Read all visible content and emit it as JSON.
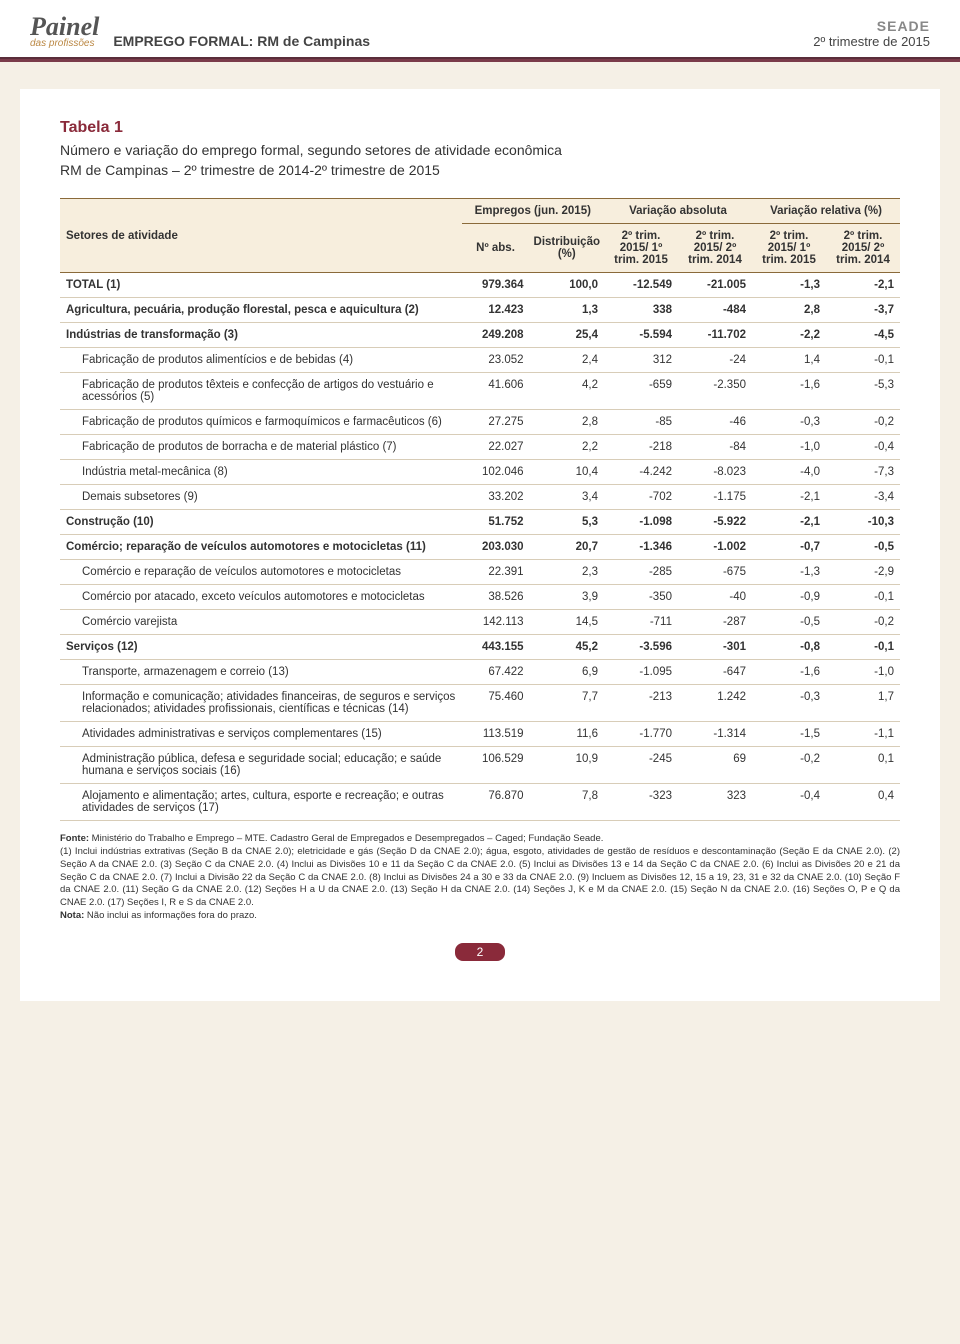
{
  "header": {
    "brand_main": "Painel",
    "brand_sub": "das profissões",
    "title": "EMPREGO FORMAL: RM de Campinas",
    "org": "SEADE",
    "period": "2º trimestre de 2015"
  },
  "table": {
    "label": "Tabela 1",
    "subtitle": "Número e variação do emprego formal, segundo setores de atividade econômica\nRM de Campinas – 2º trimestre de 2014-2º trimestre de 2015",
    "columns": {
      "sector": "Setores de atividade",
      "group_emp": "Empregos (jun. 2015)",
      "group_abs": "Variação absoluta",
      "group_rel": "Variação relativa (%)",
      "nabs": "Nº abs.",
      "dist": "Distribuição (%)",
      "abs1": "2º trim. 2015/ 1º trim. 2015",
      "abs2": "2º trim. 2015/ 2º trim. 2014",
      "rel1": "2º trim. 2015/ 1º trim. 2015",
      "rel2": "2º trim. 2015/ 2º trim. 2014"
    },
    "rows": [
      {
        "bold": true,
        "indent": 0,
        "label": "TOTAL (1)",
        "n": "979.364",
        "d": "100,0",
        "a1": "-12.549",
        "a2": "-21.005",
        "r1": "-1,3",
        "r2": "-2,1"
      },
      {
        "bold": true,
        "indent": 0,
        "label": "Agricultura, pecuária, produção florestal, pesca e aquicultura (2)",
        "n": "12.423",
        "d": "1,3",
        "a1": "338",
        "a2": "-484",
        "r1": "2,8",
        "r2": "-3,7"
      },
      {
        "bold": true,
        "indent": 0,
        "label": "Indústrias de transformação (3)",
        "n": "249.208",
        "d": "25,4",
        "a1": "-5.594",
        "a2": "-11.702",
        "r1": "-2,2",
        "r2": "-4,5"
      },
      {
        "bold": false,
        "indent": 1,
        "label": "Fabricação de produtos alimentícios e de bebidas (4)",
        "n": "23.052",
        "d": "2,4",
        "a1": "312",
        "a2": "-24",
        "r1": "1,4",
        "r2": "-0,1"
      },
      {
        "bold": false,
        "indent": 1,
        "label": "Fabricação de produtos têxteis e confecção de artigos do vestuário e acessórios (5)",
        "n": "41.606",
        "d": "4,2",
        "a1": "-659",
        "a2": "-2.350",
        "r1": "-1,6",
        "r2": "-5,3"
      },
      {
        "bold": false,
        "indent": 1,
        "label": "Fabricação de produtos químicos e farmoquímicos e farmacêuticos (6)",
        "n": "27.275",
        "d": "2,8",
        "a1": "-85",
        "a2": "-46",
        "r1": "-0,3",
        "r2": "-0,2"
      },
      {
        "bold": false,
        "indent": 1,
        "label": "Fabricação de produtos de borracha e de material plástico (7)",
        "n": "22.027",
        "d": "2,2",
        "a1": "-218",
        "a2": "-84",
        "r1": "-1,0",
        "r2": "-0,4"
      },
      {
        "bold": false,
        "indent": 1,
        "label": "Indústria metal-mecânica (8)",
        "n": "102.046",
        "d": "10,4",
        "a1": "-4.242",
        "a2": "-8.023",
        "r1": "-4,0",
        "r2": "-7,3"
      },
      {
        "bold": false,
        "indent": 1,
        "label": "Demais subsetores (9)",
        "n": "33.202",
        "d": "3,4",
        "a1": "-702",
        "a2": "-1.175",
        "r1": "-2,1",
        "r2": "-3,4"
      },
      {
        "bold": true,
        "indent": 0,
        "label": "Construção (10)",
        "n": "51.752",
        "d": "5,3",
        "a1": "-1.098",
        "a2": "-5.922",
        "r1": "-2,1",
        "r2": "-10,3"
      },
      {
        "bold": true,
        "indent": 0,
        "label": "Comércio; reparação de veículos automotores e motocicletas (11)",
        "n": "203.030",
        "d": "20,7",
        "a1": "-1.346",
        "a2": "-1.002",
        "r1": "-0,7",
        "r2": "-0,5"
      },
      {
        "bold": false,
        "indent": 1,
        "label": "Comércio e reparação de veículos automotores e motocicletas",
        "n": "22.391",
        "d": "2,3",
        "a1": "-285",
        "a2": "-675",
        "r1": "-1,3",
        "r2": "-2,9"
      },
      {
        "bold": false,
        "indent": 1,
        "label": "Comércio por atacado, exceto veículos automotores e motocicletas",
        "n": "38.526",
        "d": "3,9",
        "a1": "-350",
        "a2": "-40",
        "r1": "-0,9",
        "r2": "-0,1"
      },
      {
        "bold": false,
        "indent": 1,
        "label": "Comércio varejista",
        "n": "142.113",
        "d": "14,5",
        "a1": "-711",
        "a2": "-287",
        "r1": "-0,5",
        "r2": "-0,2"
      },
      {
        "bold": true,
        "indent": 0,
        "label": "Serviços (12)",
        "n": "443.155",
        "d": "45,2",
        "a1": "-3.596",
        "a2": "-301",
        "r1": "-0,8",
        "r2": "-0,1"
      },
      {
        "bold": false,
        "indent": 1,
        "label": "Transporte, armazenagem e correio (13)",
        "n": "67.422",
        "d": "6,9",
        "a1": "-1.095",
        "a2": "-647",
        "r1": "-1,6",
        "r2": "-1,0"
      },
      {
        "bold": false,
        "indent": 1,
        "label": "Informação e comunicação; atividades financeiras, de seguros e serviços relacionados; atividades profissionais, científicas e técnicas (14)",
        "n": "75.460",
        "d": "7,7",
        "a1": "-213",
        "a2": "1.242",
        "r1": "-0,3",
        "r2": "1,7"
      },
      {
        "bold": false,
        "indent": 1,
        "label": "Atividades administrativas e serviços complementares (15)",
        "n": "113.519",
        "d": "11,6",
        "a1": "-1.770",
        "a2": "-1.314",
        "r1": "-1,5",
        "r2": "-1,1"
      },
      {
        "bold": false,
        "indent": 1,
        "label": "Administração pública, defesa e seguridade social; educação; e saúde humana e serviços sociais (16)",
        "n": "106.529",
        "d": "10,9",
        "a1": "-245",
        "a2": "69",
        "r1": "-0,2",
        "r2": "0,1"
      },
      {
        "bold": false,
        "indent": 1,
        "label": "Alojamento e alimentação; artes, cultura, esporte e recreação; e outras atividades de serviços (17)",
        "n": "76.870",
        "d": "7,8",
        "a1": "-323",
        "a2": "323",
        "r1": "-0,4",
        "r2": "0,4"
      }
    ]
  },
  "footnote": {
    "source_label": "Fonte:",
    "source_text": " Ministério do Trabalho e Emprego – MTE. Cadastro Geral de Empregados e Desempregados – Caged; Fundação Seade.",
    "notes": "(1) Inclui indústrias extrativas (Seção B da CNAE 2.0); eletricidade e gás (Seção D da CNAE 2.0); água, esgoto, atividades de gestão de resíduos e descontaminação (Seção E da CNAE 2.0). (2) Seção A da CNAE 2.0. (3) Seção C da CNAE 2.0. (4) Inclui as Divisões 10 e 11 da Seção C da CNAE 2.0. (5) Inclui as Divisões 13 e 14 da Seção C da CNAE 2.0. (6) Inclui as Divisões 20 e 21 da Seção C da CNAE 2.0. (7) Inclui a Divisão 22 da Seção C da CNAE 2.0. (8) Inclui as Divisões 24 a 30 e 33 da CNAE 2.0. (9) Incluem as Divisões 12, 15 a 19, 23, 31 e 32 da CNAE 2.0. (10) Seção F da CNAE 2.0. (11) Seção G da CNAE 2.0. (12) Seções H a U da CNAE 2.0. (13) Seção H da CNAE 2.0. (14) Seções J, K e M da CNAE 2.0. (15) Seção N da CNAE 2.0. (16) Seções O, P e Q da CNAE 2.0. (17) Seções I, R e S da CNAE 2.0.",
    "note_label": "Nota:",
    "note_text": " Não inclui as informações fora do prazo."
  },
  "page_number": "2",
  "colors": {
    "accent": "#8a2a3a",
    "header_rule": "#5a2d3a",
    "thead_bg": "#f7eedd",
    "row_border": "#d8cdb8",
    "page_bg": "#f5f0e6"
  }
}
